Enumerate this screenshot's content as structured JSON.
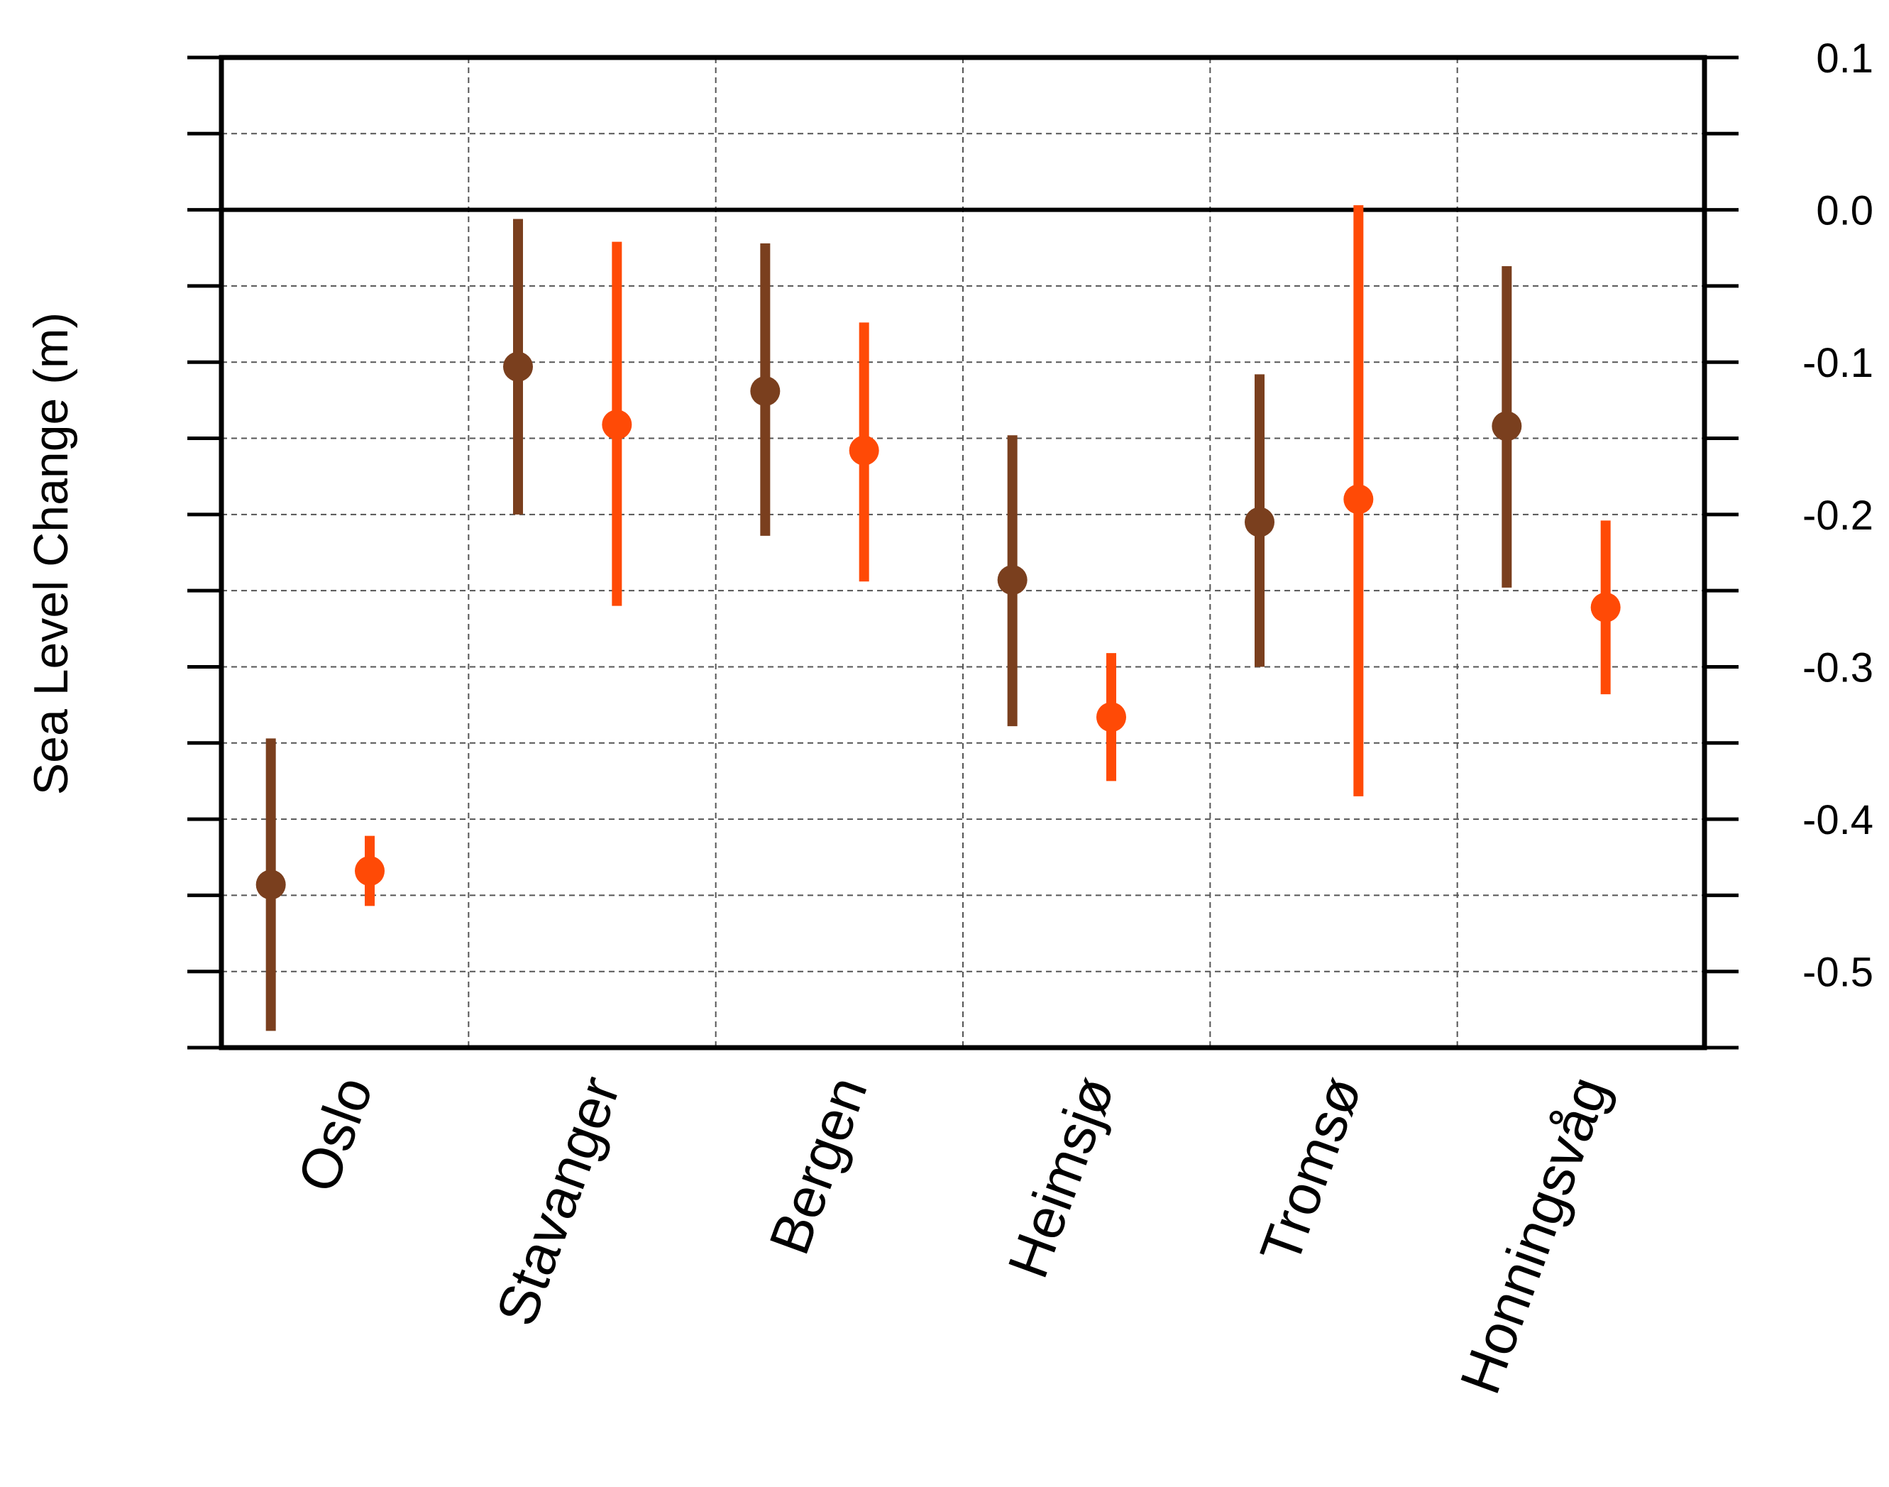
{
  "chart_data": {
    "type": "scatter",
    "title": "",
    "ylabel": "Sea Level Change (m)",
    "xlabel": "",
    "ylim": [
      -0.55,
      0.1
    ],
    "yticks": [
      0.1,
      0.0,
      -0.1,
      -0.2,
      -0.3,
      -0.4,
      -0.5
    ],
    "ytick_labels": [
      "0.1",
      "0.0",
      "-0.1",
      "-0.2",
      "-0.3",
      "-0.4",
      "-0.5"
    ],
    "y_axis_side": "right",
    "grid": true,
    "zero_line": true,
    "categories": [
      "Oslo",
      "Stavanger",
      "Bergen",
      "Heimsjø",
      "Tromsø",
      "Honningsvåg"
    ],
    "series": [
      {
        "color": "#7a3f1e",
        "values": [
          -0.443,
          -0.103,
          -0.119,
          -0.243,
          -0.205,
          -0.142
        ],
        "lower": [
          -0.539,
          -0.2,
          -0.214,
          -0.339,
          -0.3,
          -0.248
        ],
        "upper": [
          -0.347,
          -0.006,
          -0.022,
          -0.148,
          -0.108,
          -0.037
        ]
      },
      {
        "color": "#ff4a06",
        "values": [
          -0.434,
          -0.141,
          -0.158,
          -0.333,
          -0.19,
          -0.261
        ],
        "lower": [
          -0.457,
          -0.26,
          -0.244,
          -0.375,
          -0.385,
          -0.318
        ],
        "upper": [
          -0.411,
          -0.021,
          -0.074,
          -0.291,
          0.003,
          -0.204
        ]
      }
    ]
  }
}
